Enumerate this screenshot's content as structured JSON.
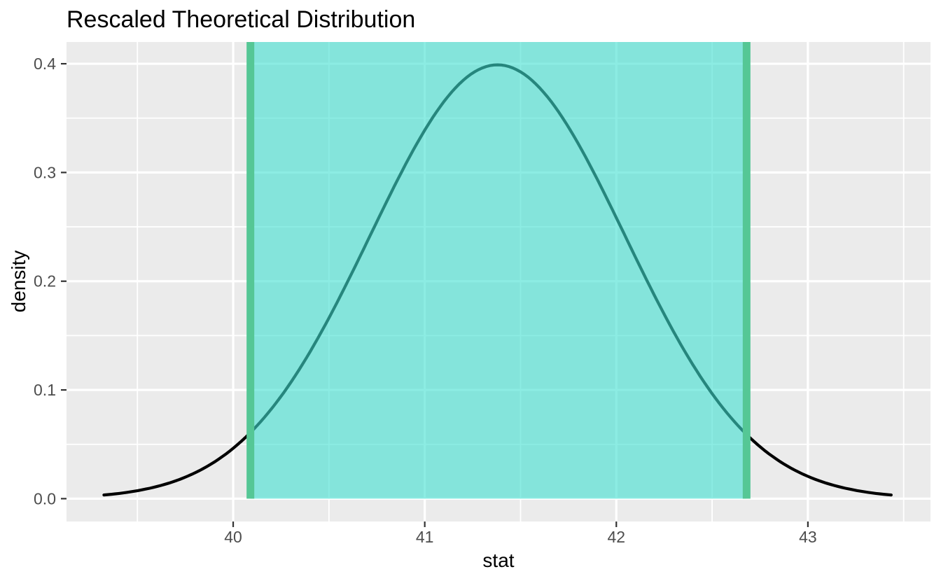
{
  "colors": {
    "background": "#FFFFFF",
    "panel": "#EBEBEB",
    "gridline": "#FFFFFF",
    "tick_mark": "#333333",
    "axis_text": "#4D4D4D",
    "title_text": "#000000",
    "curve": "#000000",
    "ci_fill": "rgba(64,224,208,0.6)",
    "ci_line": "#55C795"
  },
  "chart_data": {
    "type": "line",
    "subtype": "theoretical-density-curve-with-shaded-confidence-interval",
    "title": "Rescaled Theoretical Distribution",
    "xlabel": "stat",
    "ylabel": "density",
    "x_ticks": [
      40,
      41,
      42,
      43
    ],
    "x_minor_ticks": [
      39.5,
      40.5,
      41.5,
      42.5,
      43.5
    ],
    "y_ticks": [
      0.0,
      0.1,
      0.2,
      0.3,
      0.4
    ],
    "y_tick_labels": [
      "0.0",
      "0.1",
      "0.2",
      "0.3",
      "0.4"
    ],
    "y_minor_ticks": [
      0.05,
      0.15,
      0.25,
      0.35
    ],
    "xlim": [
      39.13,
      43.64
    ],
    "ylim": [
      -0.021,
      0.42
    ],
    "grid": "white major and minor gridlines on grey panel (ggplot theme_grey)",
    "legend_position": "none",
    "curve": {
      "distribution": "normal (rescaled t)",
      "mean": 41.38,
      "sd": 0.665,
      "peak_density": 0.399,
      "z_min": -3.09,
      "z_max": 3.09,
      "x_start": 39.33,
      "x_end": 43.43
    },
    "series": [
      {
        "x": 39.33,
        "density": 0.003
      },
      {
        "x": 39.5,
        "density": 0.007
      },
      {
        "x": 39.75,
        "density": 0.02
      },
      {
        "x": 40.0,
        "density": 0.046
      },
      {
        "x": 40.25,
        "density": 0.094
      },
      {
        "x": 40.5,
        "density": 0.165
      },
      {
        "x": 40.75,
        "density": 0.254
      },
      {
        "x": 41.0,
        "density": 0.338
      },
      {
        "x": 41.25,
        "density": 0.391
      },
      {
        "x": 41.38,
        "density": 0.399
      },
      {
        "x": 41.5,
        "density": 0.393
      },
      {
        "x": 41.75,
        "density": 0.343
      },
      {
        "x": 42.0,
        "density": 0.26
      },
      {
        "x": 42.25,
        "density": 0.171
      },
      {
        "x": 42.5,
        "density": 0.098
      },
      {
        "x": 42.75,
        "density": 0.049
      },
      {
        "x": 43.0,
        "density": 0.021
      },
      {
        "x": 43.25,
        "density": 0.008
      },
      {
        "x": 43.43,
        "density": 0.003
      }
    ],
    "confidence_interval": {
      "lower": 40.09,
      "upper": 42.68,
      "shade_from_density": 0.0,
      "shade_to": "panel-top"
    }
  }
}
